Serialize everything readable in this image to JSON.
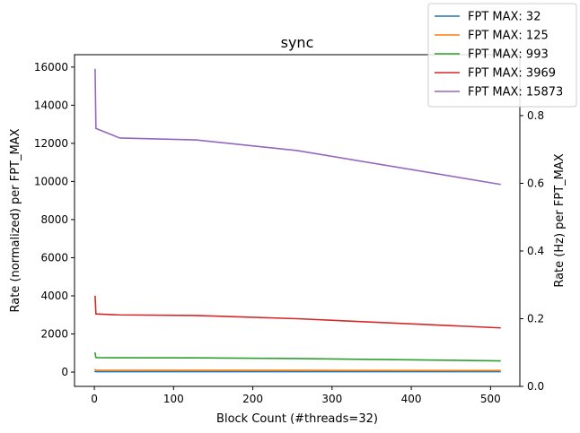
{
  "chart_data": {
    "type": "line",
    "title": "sync",
    "xlabel": "Block Count (#threads=32)",
    "ylabel": "Rate (normalized) per FPT_MAX",
    "y2label": "Rate (Hz) per FPT_MAX",
    "xlim": [
      -25,
      537
    ],
    "ylim": [
      -750,
      16650
    ],
    "y2lim": [
      0,
      0.98
    ],
    "x_ticks": [
      0,
      100,
      200,
      300,
      400,
      500
    ],
    "y_ticks": [
      0,
      2000,
      4000,
      6000,
      8000,
      10000,
      12000,
      14000,
      16000
    ],
    "y2_ticks": [
      0.0,
      0.2,
      0.4,
      0.6,
      0.8
    ],
    "legend_position": "top-right",
    "x": [
      1,
      2,
      32,
      128,
      256,
      512
    ],
    "series": [
      {
        "name": "FPT MAX: 32",
        "color": "#1f77b4",
        "values": [
          32,
          25,
          25,
          24,
          24,
          22
        ]
      },
      {
        "name": "FPT MAX: 125",
        "color": "#ff7f0e",
        "values": [
          125,
          98,
          96,
          95,
          92,
          80
        ]
      },
      {
        "name": "FPT MAX: 993",
        "color": "#2ca02c",
        "values": [
          993,
          760,
          750,
          745,
          710,
          590
        ]
      },
      {
        "name": "FPT MAX: 3969",
        "color": "#d62728",
        "values": [
          3969,
          3050,
          3000,
          2970,
          2800,
          2320
        ]
      },
      {
        "name": "FPT MAX: 15873",
        "color": "#9467bd",
        "values": [
          15873,
          12780,
          12280,
          12180,
          11620,
          9850
        ]
      }
    ]
  }
}
